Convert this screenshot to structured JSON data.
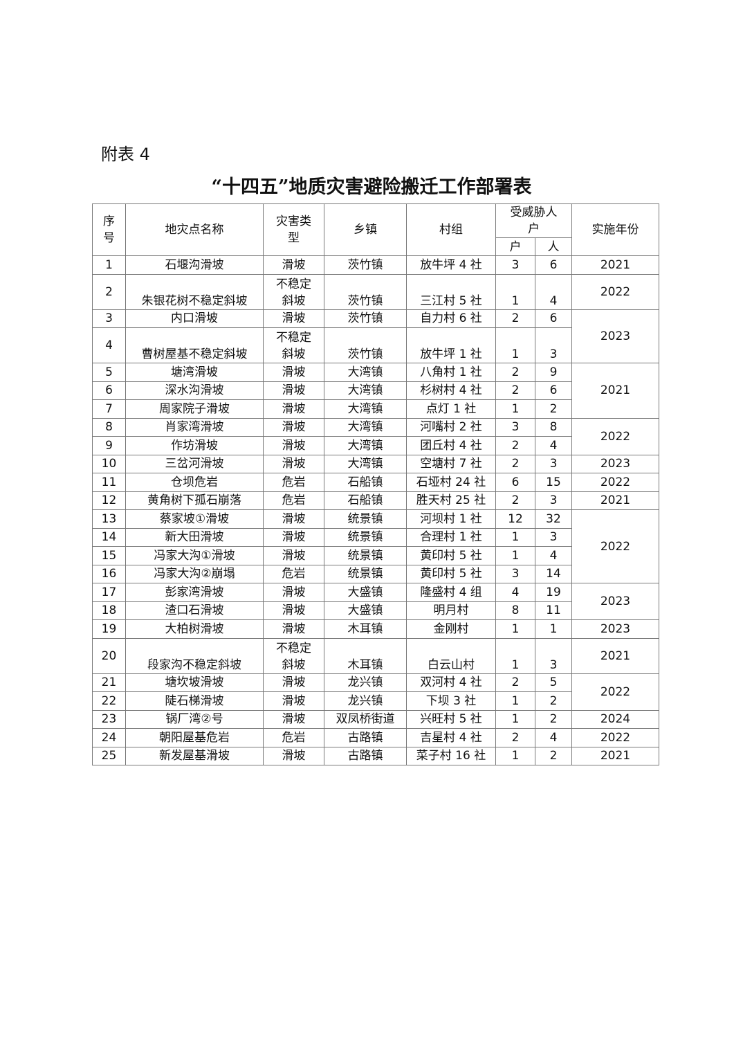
{
  "doc": {
    "label": "附表 4",
    "title": "“十四五”地质灾害避险搬迁工作部署表"
  },
  "table": {
    "headers": {
      "no": "序号",
      "name": "地灾点名称",
      "type": "灾害类型",
      "town": "乡镇",
      "village": "村组",
      "threatened": "受威胁人户",
      "households": "户",
      "people": "人",
      "year": "实施年份"
    },
    "rows": [
      {
        "no": "1",
        "name": "石堰沟滑坡",
        "type": "滑坡",
        "town": "茨竹镇",
        "village": "放牛坪 4 社",
        "households": "3",
        "people": "6",
        "year": "2021",
        "year_rowspan": 1
      },
      {
        "no": "2",
        "name": "朱银花树不稳定斜坡",
        "type": "不稳定斜坡",
        "town": "茨竹镇",
        "village": "三江村 5 社",
        "households": "1",
        "people": "4",
        "year": "2022",
        "year_rowspan": 1
      },
      {
        "no": "3",
        "name": "内口滑坡",
        "type": "滑坡",
        "town": "茨竹镇",
        "village": "自力村 6 社",
        "households": "2",
        "people": "6",
        "year": "2023",
        "year_rowspan": 2
      },
      {
        "no": "4",
        "name": "曹树屋基不稳定斜坡",
        "type": "不稳定斜坡",
        "town": "茨竹镇",
        "village": "放牛坪 1 社",
        "households": "1",
        "people": "3"
      },
      {
        "no": "5",
        "name": "塘湾滑坡",
        "type": "滑坡",
        "town": "大湾镇",
        "village": "八角村 1 社",
        "households": "2",
        "people": "9",
        "year": "2021",
        "year_rowspan": 3
      },
      {
        "no": "6",
        "name": "深水沟滑坡",
        "type": "滑坡",
        "town": "大湾镇",
        "village": "杉树村 4 社",
        "households": "2",
        "people": "6"
      },
      {
        "no": "7",
        "name": "周家院子滑坡",
        "type": "滑坡",
        "town": "大湾镇",
        "village": "点灯 1 社",
        "households": "1",
        "people": "2"
      },
      {
        "no": "8",
        "name": "肖家湾滑坡",
        "type": "滑坡",
        "town": "大湾镇",
        "village": "河嘴村 2 社",
        "households": "3",
        "people": "8",
        "year": "2022",
        "year_rowspan": 2
      },
      {
        "no": "9",
        "name": "作坊滑坡",
        "type": "滑坡",
        "town": "大湾镇",
        "village": "团丘村 4 社",
        "households": "2",
        "people": "4"
      },
      {
        "no": "10",
        "name": "三岔河滑坡",
        "type": "滑坡",
        "town": "大湾镇",
        "village": "空塘村 7 社",
        "households": "2",
        "people": "3",
        "year": "2023",
        "year_rowspan": 1
      },
      {
        "no": "11",
        "name": "仓坝危岩",
        "type": "危岩",
        "town": "石船镇",
        "village": "石垭村 24 社",
        "households": "6",
        "people": "15",
        "year": "2022",
        "year_rowspan": 1
      },
      {
        "no": "12",
        "name": "黄角树下孤石崩落",
        "type": "危岩",
        "town": "石船镇",
        "village": "胜天村 25 社",
        "households": "2",
        "people": "3",
        "year": "2021",
        "year_rowspan": 1
      },
      {
        "no": "13",
        "name": "蔡家坡①滑坡",
        "type": "滑坡",
        "town": "统景镇",
        "village": "河坝村 1 社",
        "households": "12",
        "people": "32",
        "year": "2022",
        "year_rowspan": 4
      },
      {
        "no": "14",
        "name": "新大田滑坡",
        "type": "滑坡",
        "town": "统景镇",
        "village": "合理村 1 社",
        "households": "1",
        "people": "3"
      },
      {
        "no": "15",
        "name": "冯家大沟①滑坡",
        "type": "滑坡",
        "town": "统景镇",
        "village": "黄印村 5 社",
        "households": "1",
        "people": "4"
      },
      {
        "no": "16",
        "name": "冯家大沟②崩塌",
        "type": "危岩",
        "town": "统景镇",
        "village": "黄印村 5 社",
        "households": "3",
        "people": "14"
      },
      {
        "no": "17",
        "name": "彭家湾滑坡",
        "type": "滑坡",
        "town": "大盛镇",
        "village": "隆盛村 4 组",
        "households": "4",
        "people": "19",
        "year": "2023",
        "year_rowspan": 2
      },
      {
        "no": "18",
        "name": "渣口石滑坡",
        "type": "滑坡",
        "town": "大盛镇",
        "village": "明月村",
        "households": "8",
        "people": "11"
      },
      {
        "no": "19",
        "name": "大柏树滑坡",
        "type": "滑坡",
        "town": "木耳镇",
        "village": "金刚村",
        "households": "1",
        "people": "1",
        "year": "2023",
        "year_rowspan": 1
      },
      {
        "no": "20",
        "name": "段家沟不稳定斜坡",
        "type": "不稳定斜坡",
        "town": "木耳镇",
        "village": "白云山村",
        "households": "1",
        "people": "3",
        "year": "2021",
        "year_rowspan": 1
      },
      {
        "no": "21",
        "name": "塘坎坡滑坡",
        "type": "滑坡",
        "town": "龙兴镇",
        "village": "双河村 4 社",
        "households": "2",
        "people": "5",
        "year": "2022",
        "year_rowspan": 2
      },
      {
        "no": "22",
        "name": "陡石梯滑坡",
        "type": "滑坡",
        "town": "龙兴镇",
        "village": "下坝 3 社",
        "households": "1",
        "people": "2"
      },
      {
        "no": "23",
        "name": "锅厂湾②号",
        "type": "滑坡",
        "town": "双凤桥街道",
        "village": "兴旺村 5 社",
        "households": "1",
        "people": "2",
        "year": "2024",
        "year_rowspan": 1
      },
      {
        "no": "24",
        "name": "朝阳屋基危岩",
        "type": "危岩",
        "town": "古路镇",
        "village": "吉星村 4 社",
        "households": "2",
        "people": "4",
        "year": "2022",
        "year_rowspan": 1
      },
      {
        "no": "25",
        "name": "新发屋基滑坡",
        "type": "滑坡",
        "town": "古路镇",
        "village": "菜子村 16 社",
        "households": "1",
        "people": "2",
        "year": "2021",
        "year_rowspan": 1
      }
    ]
  }
}
